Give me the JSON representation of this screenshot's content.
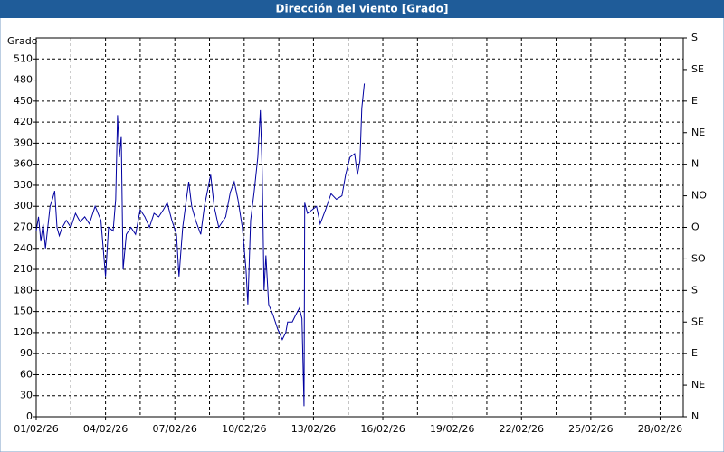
{
  "chart_data": {
    "type": "line",
    "title": "Dirección del viento [Grado]",
    "y_label": "Grado",
    "xlim": [
      0,
      28
    ],
    "xticks": [
      {
        "value": 0,
        "label": "01/02/26"
      },
      {
        "value": 3,
        "label": "04/02/26"
      },
      {
        "value": 6,
        "label": "07/02/26"
      },
      {
        "value": 9,
        "label": "10/02/26"
      },
      {
        "value": 12,
        "label": "13/02/26"
      },
      {
        "value": 15,
        "label": "16/02/26"
      },
      {
        "value": 18,
        "label": "19/02/26"
      },
      {
        "value": 21,
        "label": "22/02/26"
      },
      {
        "value": 24,
        "label": "25/02/26"
      },
      {
        "value": 27,
        "label": "28/02/26"
      }
    ],
    "x_minor_grid": [
      1.5,
      4.5,
      7.5,
      10.5,
      13.5,
      16.5,
      19.5,
      22.5,
      25.5
    ],
    "ylim": [
      0,
      540
    ],
    "yticks": [
      0,
      30,
      60,
      90,
      120,
      150,
      180,
      210,
      240,
      270,
      300,
      330,
      360,
      390,
      420,
      450,
      480,
      510
    ],
    "y2lim": [
      0,
      540
    ],
    "y2ticks": [
      {
        "value": 0,
        "label": "N"
      },
      {
        "value": 45,
        "label": "NE"
      },
      {
        "value": 90,
        "label": "E"
      },
      {
        "value": 135,
        "label": "SE"
      },
      {
        "value": 180,
        "label": "S"
      },
      {
        "value": 225,
        "label": "SO"
      },
      {
        "value": 270,
        "label": "O"
      },
      {
        "value": 315,
        "label": "NO"
      },
      {
        "value": 360,
        "label": "N"
      },
      {
        "value": 405,
        "label": "NE"
      },
      {
        "value": 450,
        "label": "E"
      },
      {
        "value": 495,
        "label": "SE"
      },
      {
        "value": 540,
        "label": "S"
      }
    ],
    "grid": true,
    "series": [
      {
        "name": "Dirección del viento",
        "color": "#0000a0",
        "x": [
          0,
          0.1,
          0.2,
          0.3,
          0.4,
          0.5,
          0.6,
          0.7,
          0.8,
          0.9,
          1.0,
          1.1,
          1.3,
          1.5,
          1.7,
          1.9,
          2.1,
          2.3,
          2.55,
          2.8,
          3.0,
          3.13,
          3.33,
          3.44,
          3.52,
          3.6,
          3.68,
          3.76,
          3.9,
          4.1,
          4.3,
          4.5,
          4.7,
          4.9,
          5.1,
          5.3,
          5.5,
          5.67,
          5.87,
          6.07,
          6.18,
          6.34,
          6.46,
          6.6,
          6.73,
          6.9,
          7.12,
          7.28,
          7.55,
          7.7,
          7.9,
          8.2,
          8.4,
          8.57,
          8.73,
          8.92,
          9.08,
          9.16,
          9.28,
          9.43,
          9.59,
          9.7,
          9.78,
          9.86,
          9.94,
          10.06,
          10.25,
          10.45,
          10.65,
          10.8,
          10.88,
          11.08,
          11.23,
          11.39,
          11.5,
          11.59,
          11.62,
          11.74,
          11.94,
          12.13,
          12.29,
          12.52,
          12.76,
          12.99,
          13.23,
          13.39,
          13.58,
          13.78,
          13.9,
          14.01,
          14.09,
          14.2
        ],
        "values": [
          265,
          285,
          250,
          275,
          240,
          270,
          300,
          310,
          322,
          270,
          258,
          268,
          280,
          270,
          290,
          278,
          285,
          275,
          300,
          280,
          200,
          270,
          265,
          310,
          430,
          370,
          400,
          210,
          260,
          270,
          260,
          295,
          285,
          270,
          290,
          285,
          295,
          305,
          280,
          260,
          200,
          270,
          300,
          335,
          300,
          280,
          260,
          300,
          345,
          300,
          270,
          285,
          320,
          335,
          310,
          270,
          210,
          160,
          280,
          320,
          370,
          437,
          350,
          180,
          230,
          160,
          145,
          125,
          110,
          120,
          135,
          135,
          145,
          155,
          140,
          15,
          305,
          290,
          295,
          300,
          275,
          295,
          318,
          310,
          315,
          345,
          370,
          375,
          345,
          365,
          440,
          475
        ]
      }
    ]
  }
}
